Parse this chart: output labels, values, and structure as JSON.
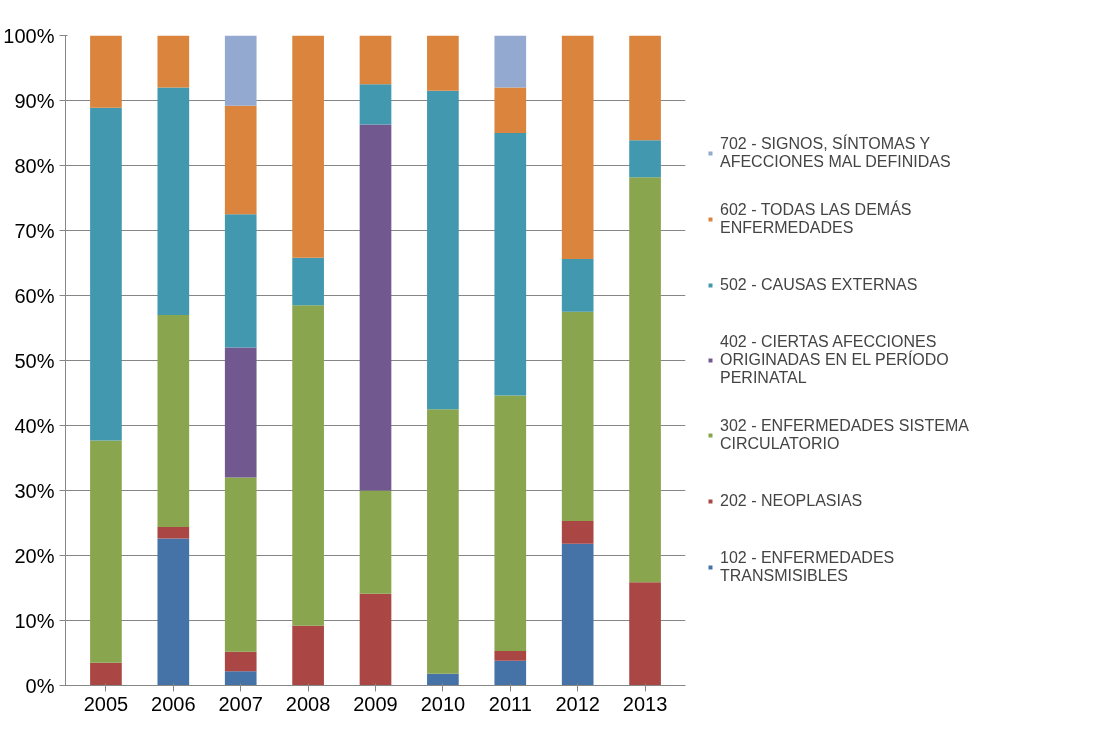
{
  "chart_data": {
    "type": "bar",
    "stacked": true,
    "categories": [
      "2005",
      "2006",
      "2007",
      "2008",
      "2009",
      "2010",
      "2011",
      "2012",
      "2013"
    ],
    "series": [
      {
        "name": "102 - ENFERMEDADES TRANSMISIBLES",
        "color": "#4572a7",
        "values": [
          0,
          22.6,
          2.2,
          0,
          0,
          1.8,
          3.8,
          21.8,
          0
        ]
      },
      {
        "name": "202 - NEOPLASIAS",
        "color": "#aa4643",
        "values": [
          3.5,
          1.8,
          3.0,
          9.2,
          14.1,
          0,
          1.5,
          3.5,
          15.9
        ]
      },
      {
        "name": "302 - ENFERMEDADES SISTEMA CIRCULATORIO",
        "color": "#89a54e",
        "values": [
          34.2,
          32.6,
          26.8,
          49.3,
          15.9,
          40.7,
          39.3,
          32.2,
          62.3
        ]
      },
      {
        "name": "402 - CIERTAS AFECCIONES ORIGINADAS EN EL PERÍODO PERINATAL",
        "color": "#71588f",
        "values": [
          0,
          0,
          20,
          0,
          56.3,
          0,
          0,
          0,
          0
        ]
      },
      {
        "name": "502 - CAUSAS EXTERNAS",
        "color": "#4198af",
        "values": [
          51.2,
          35,
          20.5,
          7.3,
          6.2,
          49,
          40.4,
          8.1,
          5.7
        ]
      },
      {
        "name": "602 - TODAS LAS DEMÁS ENFERMEDADES",
        "color": "#db843d",
        "values": [
          11.1,
          8,
          16.7,
          34.2,
          7.5,
          8.5,
          7,
          34.4,
          16.1
        ]
      },
      {
        "name": "702 - SIGNOS, SÍNTOMAS Y AFECCIONES MAL DEFINIDAS",
        "color": "#93a9cf",
        "values": [
          0,
          0,
          10.8,
          0,
          0,
          0,
          8,
          0,
          0
        ]
      }
    ],
    "ylim": [
      0,
      100
    ],
    "yticks": [
      {
        "value": 0,
        "label": "0%"
      },
      {
        "value": 10,
        "label": "10%"
      },
      {
        "value": 20,
        "label": "20%"
      },
      {
        "value": 30,
        "label": "30%"
      },
      {
        "value": 40,
        "label": "40%"
      },
      {
        "value": 50,
        "label": "50%"
      },
      {
        "value": 60,
        "label": "60%"
      },
      {
        "value": 70,
        "label": "70%"
      },
      {
        "value": 80,
        "label": "80%"
      },
      {
        "value": 90,
        "label": "90%"
      },
      {
        "value": 100,
        "label": "100%"
      }
    ],
    "grid": "y",
    "legend": "right"
  }
}
